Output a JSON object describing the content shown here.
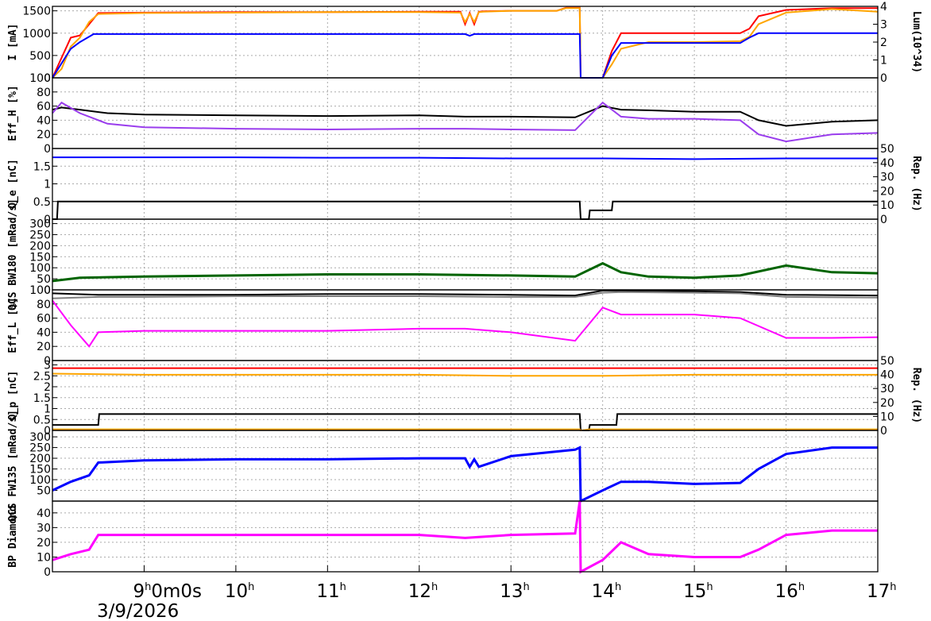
{
  "chart_data": {
    "type": "line",
    "date_label": "3/9/2026",
    "x_ticks": [
      {
        "label": "9",
        "sup": "h",
        "extra": "0m0s"
      },
      {
        "label": "10",
        "sup": "h",
        "extra": ""
      },
      {
        "label": "11",
        "sup": "h",
        "extra": ""
      },
      {
        "label": "12",
        "sup": "h",
        "extra": ""
      },
      {
        "label": "13",
        "sup": "h",
        "extra": ""
      },
      {
        "label": "14",
        "sup": "h",
        "extra": ""
      },
      {
        "label": "15",
        "sup": "h",
        "extra": ""
      },
      {
        "label": "16",
        "sup": "h",
        "extra": ""
      },
      {
        "label": "17",
        "sup": "h",
        "extra": ""
      }
    ],
    "x_range_hours": [
      8.0,
      17.0
    ],
    "grid": true,
    "panels": [
      {
        "id": "current",
        "ylabel": "I [mA]",
        "ylabel_right": "Lum(10^34)",
        "ylim": [
          0,
          1600
        ],
        "yticks": [
          "0",
          "500",
          "1000",
          "1500"
        ],
        "ylim_right": [
          0,
          4
        ],
        "yticks_right": [
          "0",
          "1",
          "2",
          "3",
          "4"
        ],
        "series": [
          {
            "color": "#ff0000",
            "t": [
              8.0,
              8.2,
              8.3,
              8.4,
              8.5,
              9.0,
              10.0,
              11.0,
              12.0,
              12.45,
              12.5,
              12.55,
              12.6,
              12.65,
              12.7,
              13.0,
              13.5,
              13.6,
              13.75,
              13.76,
              14.0,
              14.1,
              14.2,
              14.5,
              15.0,
              15.5,
              15.6,
              15.7,
              16.0,
              16.5,
              17.0
            ],
            "v": [
              0,
              900,
              950,
              1200,
              1450,
              1460,
              1470,
              1470,
              1480,
              1480,
              1200,
              1450,
              1200,
              1480,
              1490,
              1500,
              1500,
              1570,
              1570,
              0,
              0,
              600,
              1000,
              1000,
              1000,
              1000,
              1100,
              1380,
              1520,
              1560,
              1560
            ]
          },
          {
            "color": "#ffa500",
            "t": [
              8.0,
              8.1,
              8.2,
              8.3,
              8.4,
              8.5,
              9.0,
              10.0,
              11.0,
              12.0,
              12.45,
              12.5,
              12.55,
              12.6,
              12.65,
              12.7,
              13.0,
              13.5,
              13.6,
              13.75,
              13.76,
              14.0,
              14.1,
              14.2,
              14.5,
              15.0,
              15.5,
              15.6,
              15.7,
              16.0,
              16.5,
              17.0
            ],
            "v": [
              0,
              200,
              700,
              900,
              1250,
              1430,
              1450,
              1460,
              1470,
              1470,
              1460,
              1250,
              1430,
              1250,
              1470,
              1480,
              1500,
              1500,
              1560,
              1560,
              0,
              0,
              300,
              650,
              800,
              800,
              820,
              920,
              1200,
              1460,
              1540,
              1480
            ]
          },
          {
            "color": "#0000ff",
            "t": [
              8.0,
              8.2,
              8.3,
              8.45,
              9.0,
              10.0,
              11.0,
              12.0,
              12.5,
              12.55,
              12.6,
              12.65,
              13.0,
              13.75,
              13.76,
              14.0,
              14.1,
              14.2,
              14.5,
              15.0,
              15.5,
              15.6,
              15.7,
              16.0,
              17.0
            ],
            "v": [
              0,
              650,
              800,
              980,
              980,
              980,
              980,
              980,
              980,
              940,
              980,
              980,
              980,
              980,
              0,
              0,
              500,
              780,
              780,
              780,
              780,
              900,
              1000,
              1000,
              1000
            ]
          }
        ]
      },
      {
        "id": "eff_h",
        "ylabel": "Eff_H [%]",
        "ylim": [
          0,
          100
        ],
        "yticks": [
          "0",
          "20",
          "40",
          "60",
          "80",
          "100"
        ],
        "series": [
          {
            "color": "#000000",
            "t": [
              8.0,
              8.1,
              8.3,
              8.6,
              9.0,
              10.0,
              11.0,
              12.0,
              12.5,
              13.0,
              13.7,
              14.0,
              14.2,
              14.5,
              15.0,
              15.5,
              15.7,
              16.0,
              16.5,
              17.0
            ],
            "v": [
              55,
              58,
              55,
              50,
              48,
              47,
              46,
              47,
              45,
              45,
              44,
              60,
              55,
              54,
              52,
              52,
              40,
              32,
              38,
              40
            ]
          },
          {
            "color": "#9a3ded",
            "t": [
              8.0,
              8.1,
              8.3,
              8.6,
              9.0,
              10.0,
              11.0,
              12.0,
              12.5,
              13.0,
              13.7,
              14.0,
              14.2,
              14.5,
              15.0,
              15.5,
              15.7,
              16.0,
              16.5,
              17.0
            ],
            "v": [
              50,
              65,
              50,
              35,
              30,
              28,
              27,
              28,
              28,
              27,
              26,
              65,
              45,
              42,
              42,
              40,
              20,
              10,
              20,
              22
            ]
          }
        ]
      },
      {
        "id": "qe",
        "ylabel": "Q_e [nC]",
        "ylabel_right": "Rep. (Hz)",
        "ylim": [
          0,
          2
        ],
        "yticks": [
          "0",
          "0.5",
          "1",
          "1.5"
        ],
        "ylim_right": [
          0,
          50
        ],
        "yticks_right": [
          "0",
          "10",
          "20",
          "30",
          "40",
          "50"
        ],
        "series": [
          {
            "color": "#0000ff",
            "t": [
              8.0,
              9.0,
              10.0,
              11.0,
              12.0,
              13.0,
              13.7,
              14.0,
              15.0,
              16.0,
              17.0
            ],
            "v": [
              1.75,
              1.75,
              1.75,
              1.74,
              1.74,
              1.72,
              1.72,
              1.72,
              1.7,
              1.72,
              1.72
            ]
          },
          {
            "color": "#000000",
            "t": [
              8.0,
              8.05,
              8.06,
              13.75,
              13.76,
              13.85,
              13.86,
              14.1,
              14.11,
              17.0
            ],
            "v": [
              0,
              0,
              0.5,
              0.5,
              0,
              0,
              0.25,
              0.25,
              0.5,
              0.5
            ]
          }
        ]
      },
      {
        "id": "bw180",
        "ylabel": "QCS BW180 [mRad/s]",
        "ylim": [
          0,
          320
        ],
        "yticks": [
          "0",
          "50",
          "100",
          "150",
          "200",
          "250",
          "300"
        ],
        "series": [
          {
            "color": "#006400",
            "t": [
              8.0,
              8.3,
              9.0,
              10.0,
              11.0,
              12.0,
              13.0,
              13.7,
              14.0,
              14.2,
              14.5,
              15.0,
              15.5,
              16.0,
              16.5,
              17.0
            ],
            "v": [
              40,
              55,
              60,
              65,
              70,
              70,
              65,
              60,
              120,
              80,
              60,
              55,
              65,
              110,
              80,
              75
            ]
          }
        ]
      },
      {
        "id": "eff_l",
        "ylabel": "Eff_L [%]",
        "ylim": [
          0,
          100
        ],
        "yticks": [
          "0",
          "20",
          "40",
          "60",
          "80",
          "100"
        ],
        "series": [
          {
            "color": "#000000",
            "t": [
              8.0,
              8.5,
              9.0,
              10.0,
              11.0,
              12.0,
              13.0,
              13.7,
              14.0,
              14.2,
              15.0,
              15.5,
              16.0,
              17.0
            ],
            "v": [
              95,
              93,
              93,
              93,
              94,
              94,
              93,
              92,
              99,
              99,
              98,
              97,
              93,
              92
            ]
          },
          {
            "color": "#808080",
            "t": [
              8.0,
              8.5,
              9.0,
              10.0,
              11.0,
              12.0,
              13.0,
              13.7,
              14.0,
              14.2,
              15.0,
              15.5,
              16.0,
              17.0
            ],
            "v": [
              88,
              90,
              90,
              91,
              91,
              91,
              90,
              90,
              96,
              97,
              96,
              95,
              90,
              89
            ]
          },
          {
            "color": "#ff00ff",
            "t": [
              8.0,
              8.2,
              8.4,
              8.5,
              9.0,
              10.0,
              11.0,
              12.0,
              12.5,
              13.0,
              13.7,
              14.0,
              14.2,
              15.0,
              15.5,
              16.0,
              16.5,
              17.0
            ],
            "v": [
              85,
              50,
              20,
              40,
              42,
              42,
              42,
              45,
              45,
              40,
              28,
              75,
              65,
              65,
              60,
              32,
              32,
              33
            ]
          }
        ]
      },
      {
        "id": "qp",
        "ylabel": "Q_p [nC]",
        "ylabel_right": "Rep. (Hz)",
        "ylim": [
          0,
          3.2
        ],
        "yticks": [
          "0",
          "0.5",
          "1",
          "1.5",
          "2",
          "2.5",
          "3"
        ],
        "ylim_right": [
          0,
          50
        ],
        "yticks_right": [
          "0",
          "10",
          "20",
          "30",
          "40",
          "50"
        ],
        "series": [
          {
            "color": "#ff0000",
            "t": [
              8.0,
              9.0,
              10.0,
              11.0,
              12.0,
              13.0,
              13.7,
              14.0,
              15.0,
              16.0,
              17.0
            ],
            "v": [
              2.85,
              2.85,
              2.85,
              2.85,
              2.85,
              2.85,
              2.85,
              2.85,
              2.85,
              2.85,
              2.85
            ]
          },
          {
            "color": "#ffa500",
            "t": [
              8.0,
              9.0,
              10.0,
              11.0,
              12.0,
              13.0,
              13.7,
              14.0,
              15.0,
              16.0,
              17.0
            ],
            "v": [
              2.6,
              2.55,
              2.55,
              2.55,
              2.55,
              2.5,
              2.5,
              2.5,
              2.55,
              2.55,
              2.55
            ]
          },
          {
            "color": "#000000",
            "t": [
              8.0,
              8.5,
              8.51,
              13.75,
              13.76,
              13.85,
              13.86,
              14.15,
              14.16,
              17.0
            ],
            "v": [
              0.25,
              0.25,
              0.75,
              0.75,
              0,
              0,
              0.25,
              0.25,
              0.75,
              0.75
            ]
          },
          {
            "color": "#ffa500",
            "t": [
              8.0,
              13.75,
              13.76,
              13.86,
              17.0
            ],
            "v": [
              0.05,
              0.05,
              0.0,
              0.05,
              0.05
            ]
          }
        ]
      },
      {
        "id": "fw135",
        "ylabel": "QCS FW135 [mRad/s]",
        "ylim": [
          0,
          330
        ],
        "yticks": [
          "50",
          "100",
          "150",
          "200",
          "250",
          "300"
        ],
        "series": [
          {
            "color": "#0000ff",
            "t": [
              8.0,
              8.2,
              8.4,
              8.5,
              9.0,
              10.0,
              11.0,
              12.0,
              12.5,
              12.55,
              12.6,
              12.65,
              13.0,
              13.7,
              13.75,
              13.76,
              14.0,
              14.2,
              14.5,
              15.0,
              15.5,
              15.7,
              16.0,
              16.5,
              17.0
            ],
            "v": [
              50,
              90,
              120,
              180,
              190,
              195,
              195,
              200,
              200,
              160,
              195,
              160,
              210,
              240,
              250,
              0,
              50,
              90,
              90,
              80,
              85,
              150,
              220,
              250,
              250
            ]
          }
        ]
      },
      {
        "id": "bp_diamond",
        "ylabel": "BP Diamond",
        "ylim": [
          0,
          48
        ],
        "yticks": [
          "0",
          "10",
          "20",
          "30",
          "40"
        ],
        "series": [
          {
            "color": "#ff00ff",
            "t": [
              8.0,
              8.2,
              8.4,
              8.5,
              9.0,
              10.0,
              11.0,
              12.0,
              12.5,
              13.0,
              13.7,
              13.75,
              13.76,
              14.0,
              14.2,
              14.5,
              15.0,
              15.5,
              15.7,
              16.0,
              16.5,
              17.0
            ],
            "v": [
              8,
              12,
              15,
              25,
              25,
              25,
              25,
              25,
              23,
              25,
              26,
              48,
              0,
              8,
              20,
              12,
              10,
              10,
              15,
              25,
              28,
              28
            ]
          }
        ]
      }
    ]
  }
}
